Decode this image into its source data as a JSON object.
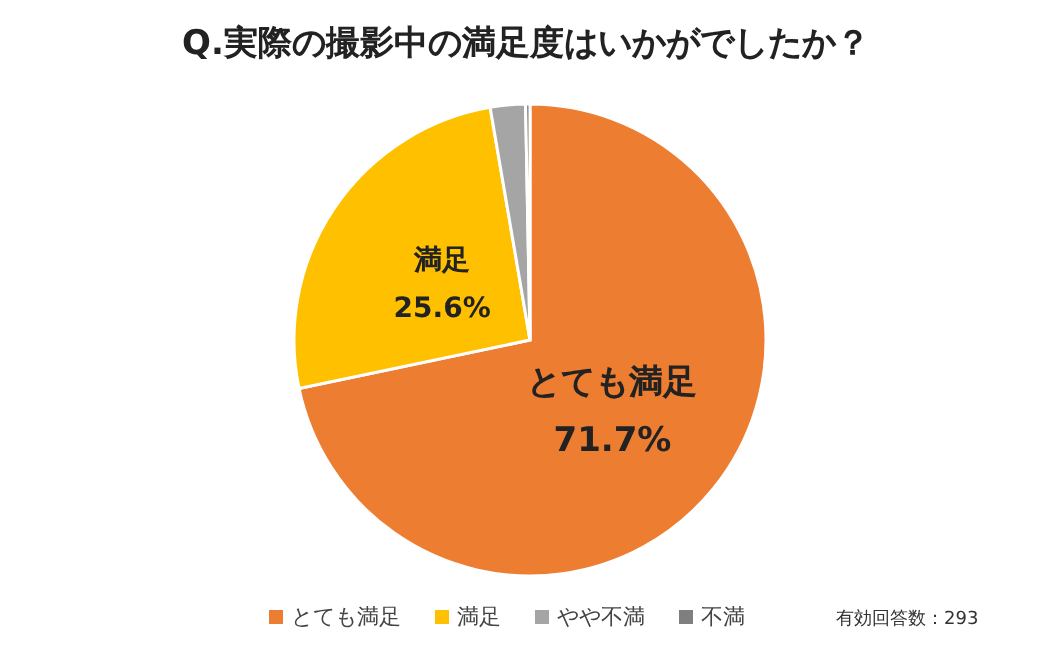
{
  "chart_data": {
    "type": "pie",
    "title": "Q.実際の撮影中の満足度はいかがでしたか？",
    "categories": [
      "とても満足",
      "満足",
      "やや不満",
      "不満"
    ],
    "values": [
      71.7,
      25.6,
      2.4,
      0.3
    ],
    "colors": [
      "#ed7d31",
      "#ffc000",
      "#a5a5a5",
      "#7f7f7f"
    ],
    "value_labels": [
      "71.7%",
      "25.6%",
      null,
      null
    ],
    "legend": "bottom",
    "annotations": [
      "有効回答数：293"
    ]
  }
}
